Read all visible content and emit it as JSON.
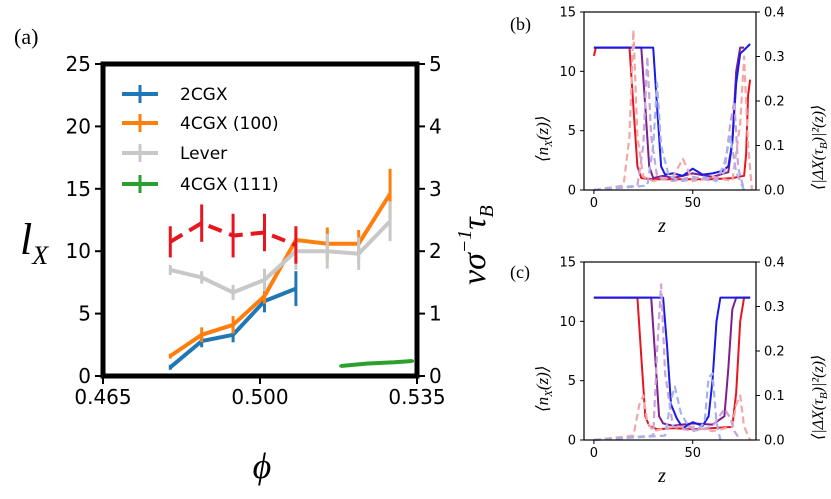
{
  "chart_data": [
    {
      "panel": "(a)",
      "type": "line",
      "xlabel": "ϕ",
      "ylabel_left": "l",
      "ylabel_left_sub": "X",
      "ylabel_right": "vσ",
      "ylabel_right_sup": "−1",
      "ylabel_right_tail": "τ",
      "ylabel_right_sub": "B",
      "xlim": [
        0.465,
        0.535
      ],
      "ylim_left": [
        0,
        25
      ],
      "ylim_right": [
        0,
        5
      ],
      "xticks": [
        "0.465",
        "0.500",
        "0.535"
      ],
      "yticks_left": [
        "0",
        "5",
        "10",
        "15",
        "20",
        "25"
      ],
      "yticks_right": [
        "0",
        "1",
        "2",
        "3",
        "4",
        "5"
      ],
      "legend_position": "upper-left",
      "series": [
        {
          "name": "2CGX",
          "color": "#1f77b4",
          "axis": "left",
          "x": [
            0.48,
            0.487,
            0.494,
            0.501,
            0.508
          ],
          "y": [
            0.7,
            2.8,
            3.3,
            6.0,
            7.0
          ],
          "yerr": [
            0.2,
            0.5,
            0.6,
            0.9,
            1.4
          ]
        },
        {
          "name": "4CGX (100)",
          "color": "#ff7f0e",
          "axis": "left",
          "x": [
            0.48,
            0.487,
            0.494,
            0.501,
            0.508,
            0.515,
            0.522,
            0.529
          ],
          "y": [
            1.6,
            3.3,
            4.1,
            6.4,
            10.9,
            10.6,
            10.6,
            14.6
          ],
          "yerr": [
            0.2,
            0.6,
            0.7,
            0.6,
            0.8,
            1.3,
            1.1,
            2.0
          ]
        },
        {
          "name": "Lever",
          "color": "#c8c8c8",
          "axis": "left",
          "x": [
            0.48,
            0.487,
            0.494,
            0.501,
            0.508,
            0.515,
            0.522,
            0.529
          ],
          "y": [
            8.5,
            7.9,
            6.7,
            7.7,
            10.0,
            10.0,
            9.8,
            12.4
          ],
          "yerr": [
            0.4,
            0.5,
            0.6,
            0.9,
            1.5,
            1.4,
            1.3,
            1.6
          ]
        },
        {
          "name": "4CGX (111)",
          "color": "#2ca02c",
          "axis": "left",
          "x": [
            0.518,
            0.524,
            0.53,
            0.534
          ],
          "y": [
            0.8,
            1.0,
            1.1,
            1.2
          ],
          "yerr": [
            0.1,
            0.1,
            0.1,
            0.1
          ]
        },
        {
          "name": "",
          "color": "#e8151e",
          "axis": "right",
          "dashed": true,
          "x": [
            0.48,
            0.487,
            0.494,
            0.501,
            0.508
          ],
          "y": [
            2.15,
            2.45,
            2.25,
            2.3,
            2.1
          ],
          "yerr": [
            0.25,
            0.3,
            0.35,
            0.3,
            0.3
          ]
        }
      ]
    },
    {
      "panel": "(b)",
      "type": "line",
      "xlabel": "z",
      "ylabel_left": "⟨n",
      "ylabel_left_sub": "X",
      "ylabel_left_tail": "(z)⟩",
      "ylabel_right": "⟨|ΔX(τ",
      "ylabel_right_sub": "B",
      "ylabel_right_tail": ")|²(z)⟩",
      "xlim": [
        -5,
        82
      ],
      "ylim_left": [
        0,
        15
      ],
      "ylim_right": [
        0,
        0.4
      ],
      "xticks": [
        "0",
        "50"
      ],
      "yticks_left": [
        "0",
        "5",
        "10",
        "15"
      ],
      "yticks_right": [
        "0.0",
        "0.1",
        "0.2",
        "0.3",
        "0.4"
      ],
      "series": [
        {
          "name": "red",
          "color": "#e8151e",
          "axis": "left",
          "dashed": false,
          "x": [
            0,
            1,
            18,
            20,
            22,
            24,
            30,
            40,
            50,
            60,
            70,
            76,
            77,
            78,
            79
          ],
          "y": [
            11.3,
            12.0,
            12.0,
            7.0,
            2.0,
            1.0,
            0.9,
            0.9,
            0.9,
            0.9,
            1.0,
            1.2,
            3.0,
            8.0,
            9.3
          ]
        },
        {
          "name": "purple",
          "color": "#7d1f8e",
          "axis": "left",
          "dashed": false,
          "x": [
            0,
            24,
            26,
            28,
            30,
            35,
            40,
            50,
            60,
            68,
            70,
            72,
            74,
            76
          ],
          "y": [
            12.0,
            12.0,
            7.0,
            2.0,
            1.0,
            1.2,
            1.0,
            1.4,
            1.1,
            1.5,
            4.0,
            10.0,
            12.0,
            12.0
          ]
        },
        {
          "name": "blue",
          "color": "#1a1ae6",
          "axis": "left",
          "dashed": false,
          "x": [
            0,
            30,
            32,
            34,
            36,
            40,
            45,
            50,
            55,
            60,
            65,
            68,
            70,
            72,
            74,
            76,
            79
          ],
          "y": [
            12.0,
            12.0,
            7.0,
            2.0,
            1.3,
            1.4,
            1.2,
            1.8,
            1.3,
            1.4,
            1.6,
            2.0,
            4.0,
            9.0,
            11.5,
            11.8,
            12.3
          ]
        },
        {
          "name": "red-fluct",
          "color": "#f4a6a8",
          "axis": "right",
          "dashed": true,
          "x": [
            0,
            15,
            18,
            20,
            22,
            25,
            30,
            40,
            45,
            50,
            60,
            70,
            74,
            76,
            78,
            80
          ],
          "y": [
            0.0,
            0.01,
            0.12,
            0.36,
            0.12,
            0.03,
            0.02,
            0.03,
            0.07,
            0.02,
            0.03,
            0.02,
            0.15,
            0.3,
            0.1,
            0.0
          ]
        },
        {
          "name": "purple-fluct",
          "color": "#c9a3d9",
          "axis": "right",
          "dashed": true,
          "x": [
            0,
            22,
            25,
            27,
            29,
            32,
            40,
            50,
            60,
            66,
            69,
            71,
            73,
            76
          ],
          "y": [
            0.0,
            0.01,
            0.1,
            0.3,
            0.12,
            0.03,
            0.02,
            0.03,
            0.02,
            0.04,
            0.15,
            0.2,
            0.05,
            0.0
          ]
        },
        {
          "name": "blue-fluct",
          "color": "#a6b2ef",
          "axis": "right",
          "dashed": true,
          "x": [
            0,
            27,
            30,
            32,
            34,
            38,
            45,
            55,
            62,
            66,
            69,
            72,
            76
          ],
          "y": [
            0.0,
            0.01,
            0.1,
            0.24,
            0.1,
            0.03,
            0.02,
            0.03,
            0.02,
            0.06,
            0.12,
            0.04,
            0.0
          ]
        }
      ]
    },
    {
      "panel": "(c)",
      "type": "line",
      "xlabel": "z",
      "ylabel_left": "⟨n",
      "ylabel_left_sub": "X",
      "ylabel_left_tail": "(z)⟩",
      "ylabel_right": "⟨|ΔX(τ",
      "ylabel_right_sub": "B",
      "ylabel_right_tail": ")|²(z)⟩",
      "xlim": [
        -5,
        82
      ],
      "ylim_left": [
        0,
        15
      ],
      "ylim_right": [
        0,
        0.4
      ],
      "xticks": [
        "0",
        "50"
      ],
      "yticks_left": [
        "0",
        "5",
        "10",
        "15"
      ],
      "yticks_right": [
        "0.0",
        "0.1",
        "0.2",
        "0.3",
        "0.4"
      ],
      "series": [
        {
          "name": "red",
          "color": "#e8151e",
          "axis": "left",
          "dashed": false,
          "x": [
            0,
            22,
            24,
            26,
            28,
            32,
            40,
            50,
            60,
            70,
            72,
            74,
            76,
            79
          ],
          "y": [
            12.0,
            12.0,
            7.0,
            2.0,
            1.2,
            0.9,
            1.0,
            0.9,
            1.0,
            1.1,
            4.0,
            10.0,
            12.0,
            12.0
          ]
        },
        {
          "name": "purple",
          "color": "#7d1f8e",
          "axis": "left",
          "dashed": false,
          "x": [
            0,
            29,
            31,
            33,
            35,
            40,
            50,
            60,
            66,
            68,
            70,
            72,
            74,
            79
          ],
          "y": [
            12.0,
            12.0,
            7.0,
            2.0,
            1.4,
            1.2,
            1.4,
            1.3,
            2.0,
            6.0,
            11.0,
            12.0,
            12.0,
            12.0
          ]
        },
        {
          "name": "blue",
          "color": "#1a1ae6",
          "axis": "left",
          "dashed": false,
          "x": [
            0,
            35,
            37,
            39,
            42,
            45,
            50,
            55,
            58,
            60,
            62,
            64,
            66,
            79
          ],
          "y": [
            12.0,
            12.0,
            8.0,
            3.0,
            1.8,
            1.0,
            1.5,
            1.2,
            2.0,
            5.0,
            10.0,
            12.0,
            12.0,
            12.0
          ]
        },
        {
          "name": "red-fluct",
          "color": "#f4a6a8",
          "axis": "right",
          "dashed": true,
          "x": [
            0,
            20,
            23,
            25,
            27,
            30,
            40,
            50,
            60,
            70,
            72,
            74,
            76,
            79
          ],
          "y": [
            0.0,
            0.01,
            0.08,
            0.1,
            0.04,
            0.02,
            0.03,
            0.03,
            0.02,
            0.03,
            0.08,
            0.1,
            0.03,
            0.0
          ]
        },
        {
          "name": "purple-fluct",
          "color": "#c9a3d9",
          "axis": "right",
          "dashed": true,
          "x": [
            0,
            30,
            32,
            34,
            36,
            40,
            50,
            60,
            66,
            69,
            71,
            74
          ],
          "y": [
            0.0,
            0.01,
            0.2,
            0.35,
            0.15,
            0.03,
            0.02,
            0.03,
            0.07,
            0.05,
            0.02,
            0.0
          ]
        },
        {
          "name": "blue-fluct",
          "color": "#a6b2ef",
          "axis": "right",
          "dashed": true,
          "x": [
            0,
            36,
            39,
            41,
            44,
            48,
            52,
            56,
            58,
            60,
            62,
            64
          ],
          "y": [
            0.0,
            0.01,
            0.09,
            0.12,
            0.06,
            0.03,
            0.02,
            0.04,
            0.14,
            0.15,
            0.04,
            0.0
          ]
        }
      ]
    }
  ]
}
